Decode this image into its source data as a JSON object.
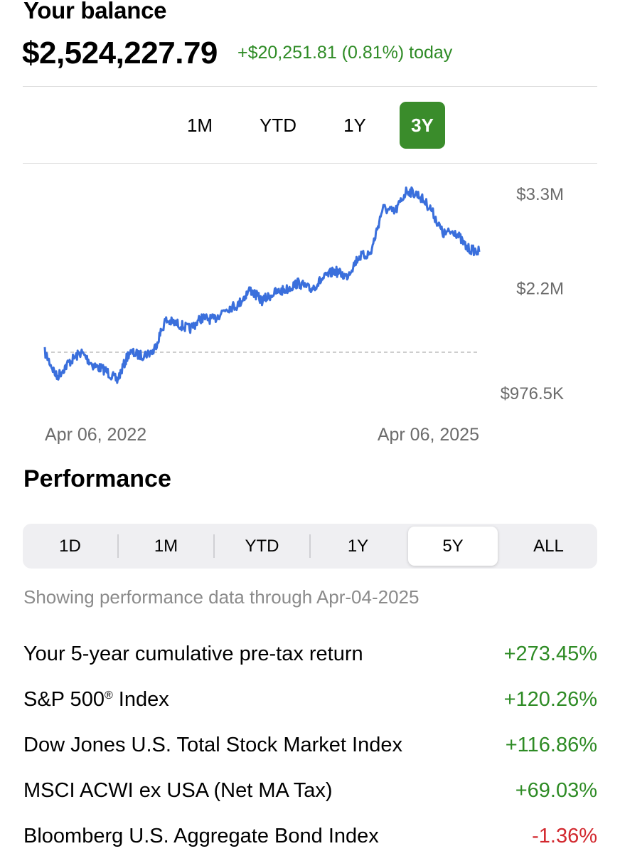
{
  "balance": {
    "label": "Your balance",
    "value": "$2,524,227.79",
    "change_today": "+$20,251.81 (0.81%) today"
  },
  "range_tabs": {
    "items": [
      "1M",
      "YTD",
      "1Y",
      "3Y"
    ],
    "selected": "3Y"
  },
  "chart_data": {
    "type": "line",
    "y_tick_labels": [
      "$3.3M",
      "$2.2M",
      "$976.5K"
    ],
    "y_tick_values": [
      3300000,
      2200000,
      976500
    ],
    "x_start_label": "Apr 06, 2022",
    "x_end_label": "Apr 06, 2025",
    "baseline": 1450000,
    "baseline_style": "dashed",
    "line_color": "#3a6fdc",
    "series": [
      {
        "x": [
          "2022-04",
          "2022-05",
          "2022-06",
          "2022-07",
          "2022-08",
          "2022-09",
          "2022-10",
          "2022-11",
          "2022-12",
          "2023-01",
          "2023-02",
          "2023-03",
          "2023-04",
          "2023-05",
          "2023-06",
          "2023-07",
          "2023-08",
          "2023-09",
          "2023-10",
          "2023-11",
          "2023-12",
          "2024-01",
          "2024-02",
          "2024-03",
          "2024-04",
          "2024-05",
          "2024-06",
          "2024-07",
          "2024-08",
          "2024-09",
          "2024-10",
          "2024-11",
          "2024-12",
          "2025-01",
          "2025-02",
          "2025-03",
          "2025-04"
        ],
        "values": [
          1450000,
          1160000,
          1330000,
          1450000,
          1300000,
          1240000,
          1120000,
          1450000,
          1410000,
          1460000,
          1820000,
          1780000,
          1720000,
          1850000,
          1830000,
          1960000,
          2000000,
          2180000,
          2050000,
          2140000,
          2180000,
          2260000,
          2180000,
          2300000,
          2400000,
          2330000,
          2560000,
          2600000,
          3130000,
          3080000,
          3340000,
          3280000,
          3120000,
          2830000,
          2860000,
          2660000,
          2620000
        ]
      }
    ]
  },
  "performance": {
    "title": "Performance",
    "segments": [
      "1D",
      "1M",
      "YTD",
      "1Y",
      "5Y",
      "ALL"
    ],
    "selected": "5Y",
    "note": "Showing performance data through Apr-04-2025",
    "rows": [
      {
        "label": "Your 5-year cumulative pre-tax return",
        "value": "+273.45%",
        "status_color": "#2e8b25"
      },
      {
        "label": "S&P 500",
        "label_suffix": "®",
        "label_tail": " Index",
        "value": "+120.26%",
        "status_color": "#2e8b25"
      },
      {
        "label": "Dow Jones U.S. Total Stock Market Index",
        "value": "+116.86%",
        "status_color": "#2e8b25"
      },
      {
        "label": "MSCI ACWI ex USA (Net MA Tax)",
        "value": "+69.03%",
        "status_color": "#2e8b25"
      },
      {
        "label": "Bloomberg U.S. Aggregate Bond Index",
        "value": "-1.36%",
        "status_color": "#d2282e"
      }
    ]
  }
}
